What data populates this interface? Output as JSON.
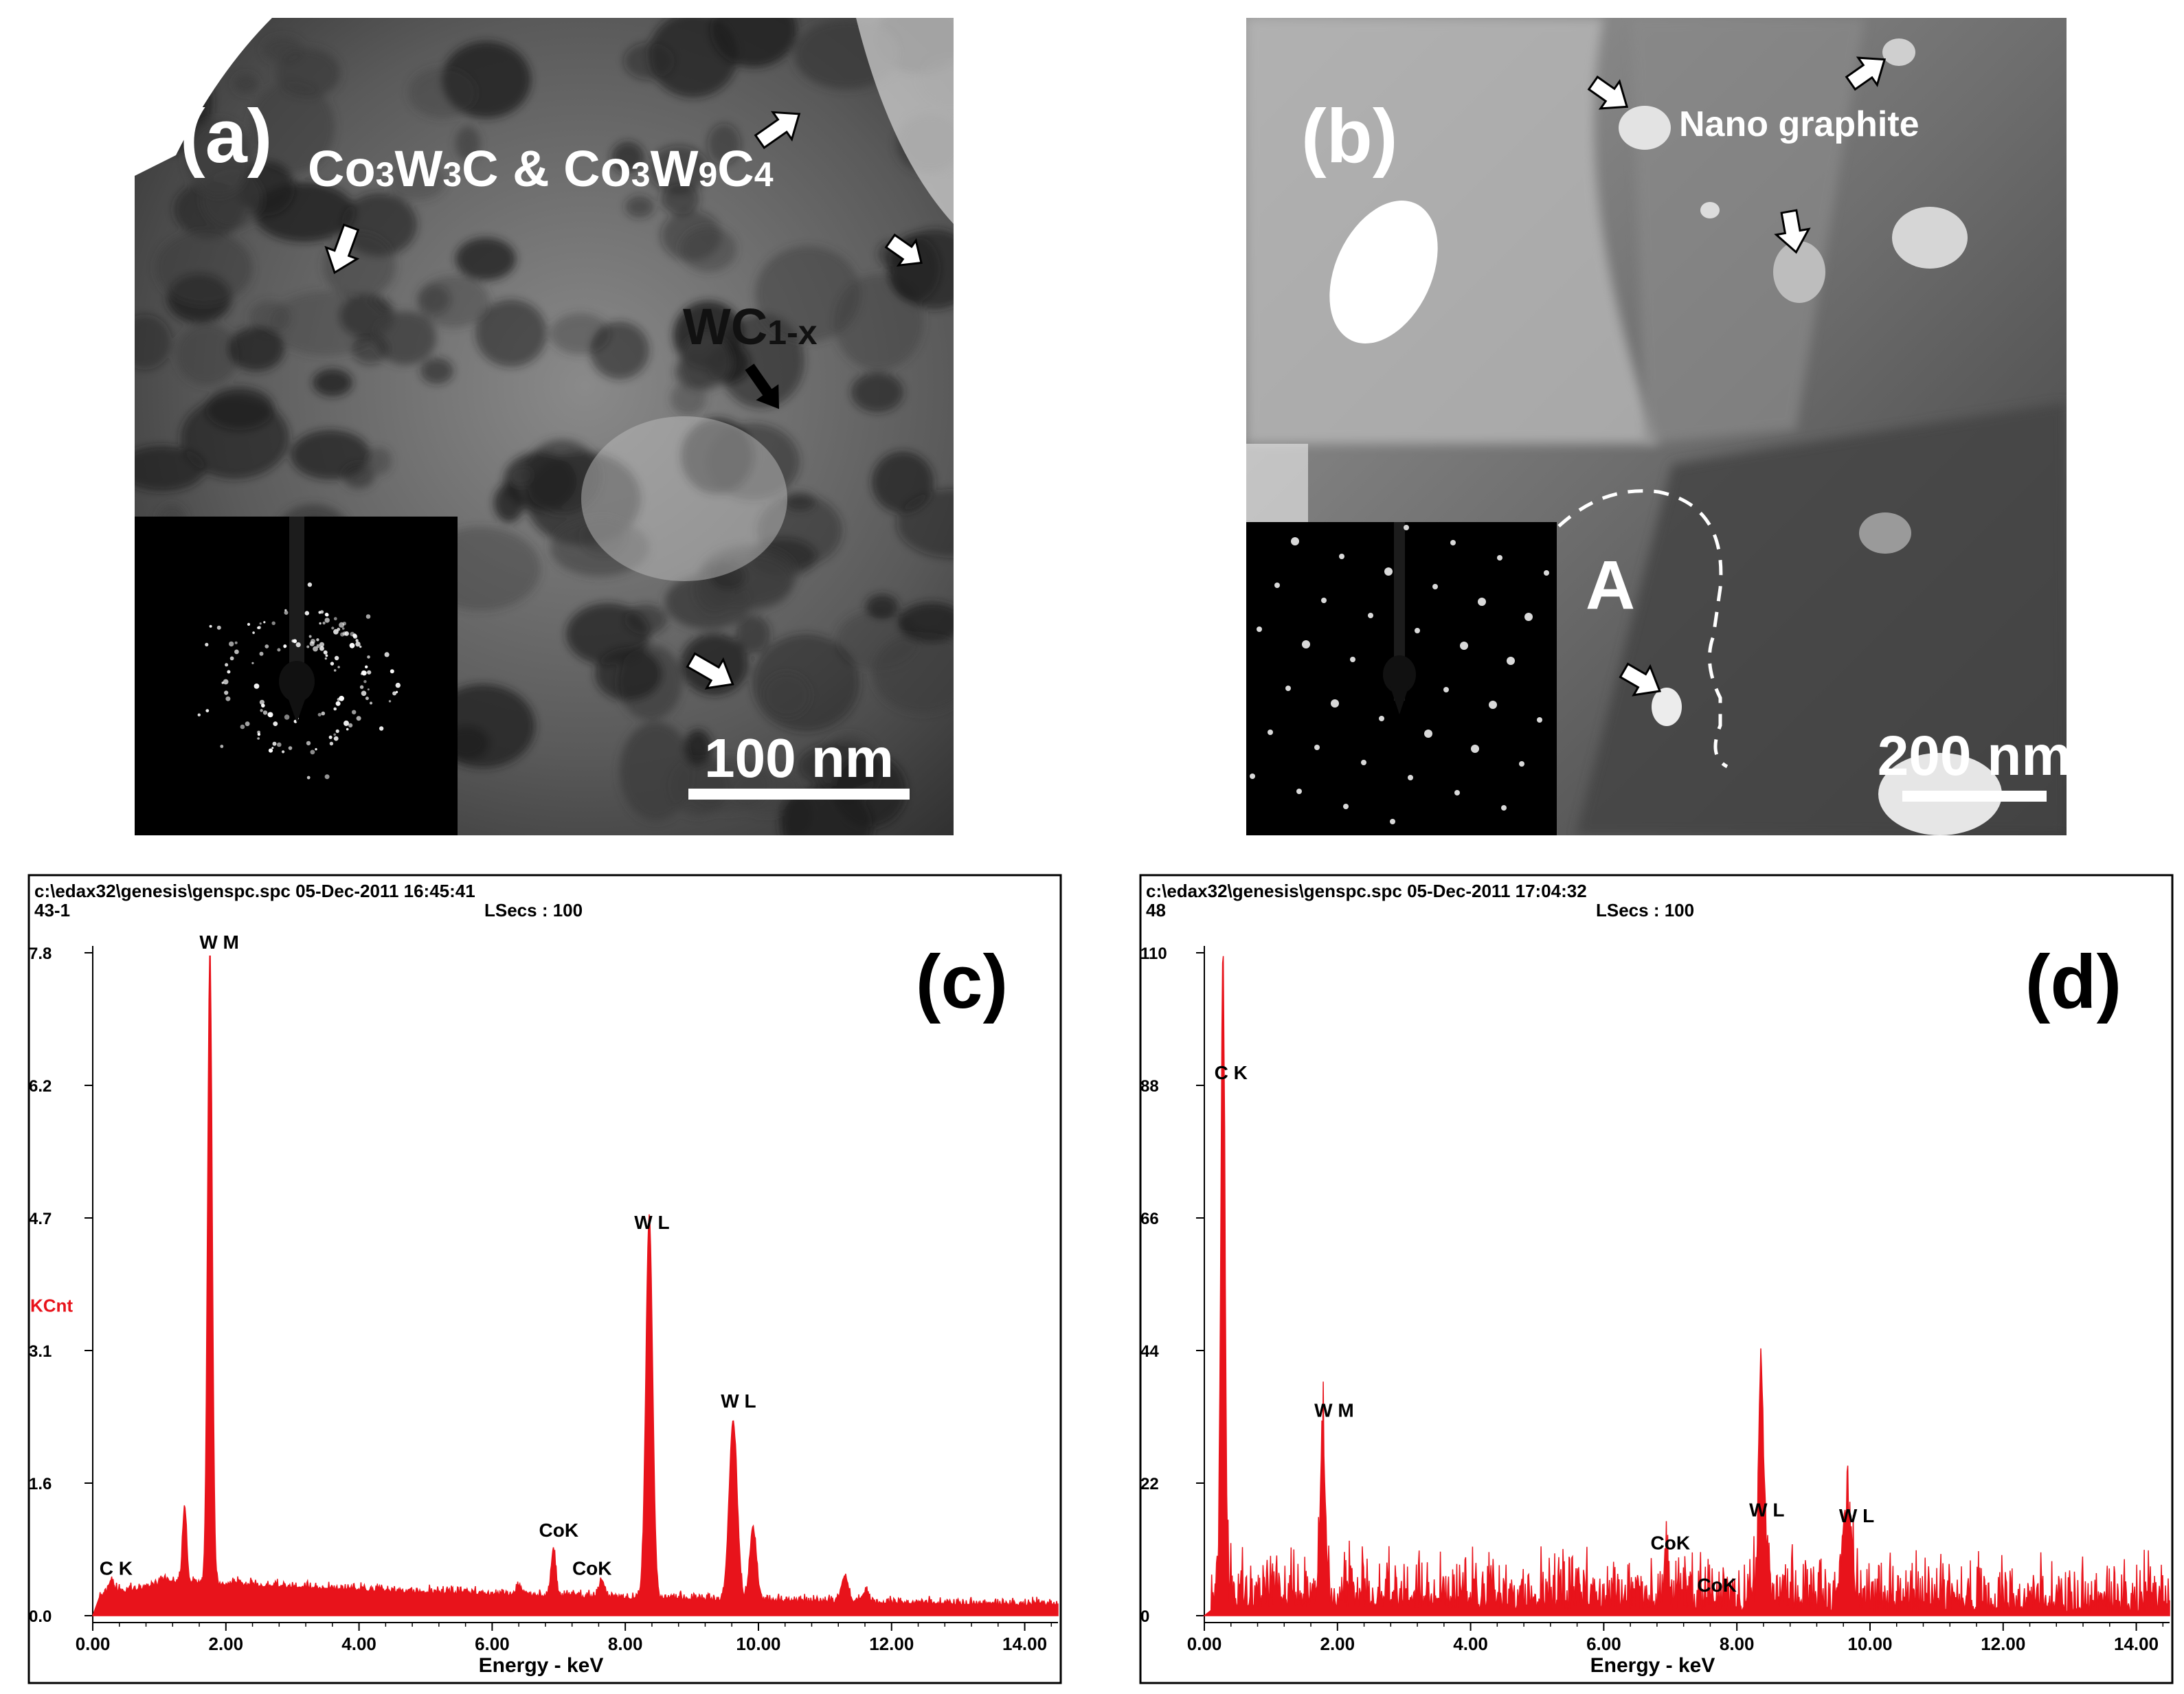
{
  "figure": {
    "panel_a": {
      "label": "(a)",
      "phase_label_parts": [
        "Co",
        "3",
        "W",
        "3",
        "C & Co",
        "3",
        "W",
        "9",
        "C",
        "4"
      ],
      "wc_label_main": "WC",
      "wc_label_sub": "1-x",
      "scale_bar": "100 nm"
    },
    "panel_b": {
      "label": "(b)",
      "annotation": "Nano graphite",
      "region_label": "A",
      "scale_bar": "200 nm"
    }
  },
  "chart_data": [
    {
      "type": "line",
      "panel_label": "(c)",
      "header_line1": "c:\\edax32\\genesis\\genspc.spc  05-Dec-2011 16:45:41",
      "header_line2": "43-1",
      "lsecs": "LSecs : 100",
      "ylabel": "KCnt",
      "xlabel": "Energy - keV",
      "xlim": [
        0,
        14.5
      ],
      "ylim": [
        0,
        7.8
      ],
      "y_ticks": [
        "0.0",
        "1.6",
        "3.1",
        "4.7",
        "6.2",
        "7.8"
      ],
      "y_tick_values": [
        0,
        1.56,
        3.12,
        4.68,
        6.24,
        7.8
      ],
      "x_ticks": [
        "0.00",
        "2.00",
        "4.00",
        "6.00",
        "8.00",
        "10.00",
        "12.00",
        "14.00"
      ],
      "x_tick_values": [
        0,
        2,
        4,
        6,
        8,
        10,
        12,
        14
      ],
      "baseline": 0.25,
      "noise": 0.04,
      "peaks": [
        {
          "x": 0.28,
          "h": 0.15,
          "w": 0.04
        },
        {
          "x": 1.38,
          "h": 0.9,
          "w": 0.03
        },
        {
          "x": 1.76,
          "h": 7.45,
          "w": 0.035
        },
        {
          "x": 6.4,
          "h": 0.1,
          "w": 0.04
        },
        {
          "x": 6.92,
          "h": 0.55,
          "w": 0.035
        },
        {
          "x": 7.65,
          "h": 0.2,
          "w": 0.04
        },
        {
          "x": 8.36,
          "h": 4.5,
          "w": 0.05
        },
        {
          "x": 9.62,
          "h": 2.1,
          "w": 0.06
        },
        {
          "x": 9.92,
          "h": 0.85,
          "w": 0.05
        },
        {
          "x": 11.3,
          "h": 0.3,
          "w": 0.05
        },
        {
          "x": 11.6,
          "h": 0.12,
          "w": 0.05
        }
      ],
      "annotations": [
        {
          "text": "C K",
          "x": 0.35,
          "y": 0.48
        },
        {
          "text": "W M",
          "x": 1.9,
          "y": 7.85
        },
        {
          "text": "CoK",
          "x": 7.0,
          "y": 0.93
        },
        {
          "text": "CoK",
          "x": 7.5,
          "y": 0.48
        },
        {
          "text": "W L",
          "x": 8.4,
          "y": 4.55
        },
        {
          "text": "W L",
          "x": 9.7,
          "y": 2.45
        }
      ]
    },
    {
      "type": "line",
      "panel_label": "(d)",
      "header_line1": "c:\\edax32\\genesis\\genspc.spc  05-Dec-2011 17:04:32",
      "header_line2": "48",
      "lsecs": "LSecs : 100",
      "ylabel": "",
      "xlabel": "Energy - keV",
      "xlim": [
        0,
        14.5
      ],
      "ylim": [
        0,
        110
      ],
      "y_ticks": [
        "0",
        "22",
        "44",
        "66",
        "88",
        "110"
      ],
      "y_tick_values": [
        0,
        22,
        44,
        66,
        88,
        110
      ],
      "x_ticks": [
        "0.00",
        "2.00",
        "4.00",
        "6.00",
        "8.00",
        "10.00",
        "12.00",
        "14.00"
      ],
      "x_tick_values": [
        0,
        2,
        4,
        6,
        8,
        10,
        12,
        14
      ],
      "baseline": 1,
      "noise": 4,
      "peaks": [
        {
          "x": 0.28,
          "h": 106,
          "w": 0.03
        },
        {
          "x": 1.78,
          "h": 26,
          "w": 0.04
        },
        {
          "x": 6.93,
          "h": 7,
          "w": 0.03
        },
        {
          "x": 8.36,
          "h": 30,
          "w": 0.03
        },
        {
          "x": 8.4,
          "h": 13,
          "w": 0.06
        },
        {
          "x": 9.65,
          "h": 15,
          "w": 0.07
        }
      ],
      "annotations": [
        {
          "text": "C K",
          "x": 0.4,
          "y": 89
        },
        {
          "text": "W M",
          "x": 1.95,
          "y": 33
        },
        {
          "text": "CoK",
          "x": 7.0,
          "y": 11
        },
        {
          "text": "CoK",
          "x": 7.7,
          "y": 4
        },
        {
          "text": "W L",
          "x": 8.45,
          "y": 16.5
        },
        {
          "text": "W L",
          "x": 9.8,
          "y": 15.5
        }
      ]
    }
  ]
}
